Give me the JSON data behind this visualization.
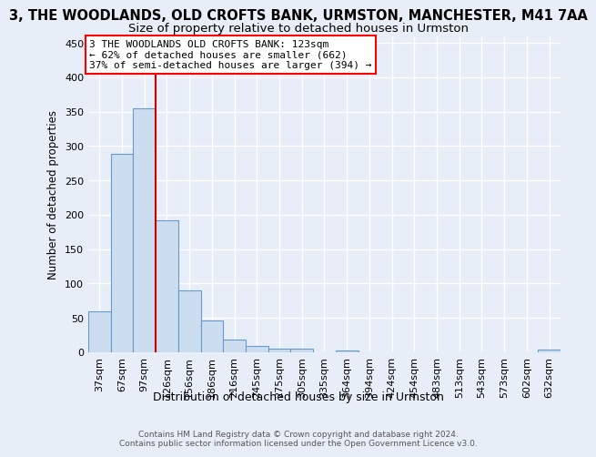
{
  "title": "3, THE WOODLANDS, OLD CROFTS BANK, URMSTON, MANCHESTER, M41 7AA",
  "subtitle": "Size of property relative to detached houses in Urmston",
  "xlabel": "Distribution of detached houses by size in Urmston",
  "ylabel": "Number of detached properties",
  "categories": [
    "37sqm",
    "67sqm",
    "97sqm",
    "126sqm",
    "156sqm",
    "186sqm",
    "216sqm",
    "245sqm",
    "275sqm",
    "305sqm",
    "335sqm",
    "364sqm",
    "394sqm",
    "424sqm",
    "454sqm",
    "483sqm",
    "513sqm",
    "543sqm",
    "573sqm",
    "602sqm",
    "632sqm"
  ],
  "values": [
    59,
    289,
    355,
    192,
    90,
    46,
    19,
    9,
    5,
    5,
    0,
    3,
    0,
    0,
    0,
    0,
    0,
    0,
    0,
    0,
    4
  ],
  "bar_color": "#ccddf0",
  "bar_edge_color": "#6699cc",
  "property_line_x": 2.5,
  "annotation_line1": "3 THE WOODLANDS OLD CROFTS BANK: 123sqm",
  "annotation_line2": "← 62% of detached houses are smaller (662)",
  "annotation_line3": "37% of semi-detached houses are larger (394) →",
  "line_color": "#cc0000",
  "ylim": [
    0,
    460
  ],
  "yticks": [
    0,
    50,
    100,
    150,
    200,
    250,
    300,
    350,
    400,
    450
  ],
  "footer1": "Contains HM Land Registry data © Crown copyright and database right 2024.",
  "footer2": "Contains public sector information licensed under the Open Government Licence v3.0.",
  "background_color": "#e8eef8",
  "grid_color": "#ffffff",
  "title_fontsize": 10.5,
  "subtitle_fontsize": 9.5,
  "tick_fontsize": 8,
  "ylabel_fontsize": 8.5,
  "xlabel_fontsize": 9,
  "annot_fontsize": 8,
  "footer_fontsize": 6.5
}
